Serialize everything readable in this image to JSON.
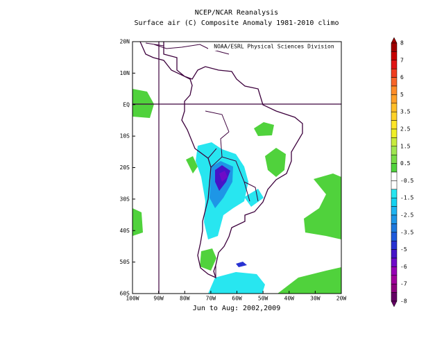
{
  "header": {
    "title": "NCEP/NCAR Reanalysis",
    "subtitle": "Surface air (C) Composite Anomaly 1981-2010 climo"
  },
  "map": {
    "attribution": "NOAA/ESRL Physical Sciences Division",
    "lat_labels": [
      "20N",
      "10N",
      "EQ",
      "10S",
      "20S",
      "30S",
      "40S",
      "50S",
      "60S"
    ],
    "lon_labels": [
      "100W",
      "90W",
      "80W",
      "70W",
      "60W",
      "50W",
      "40W",
      "30W",
      "20W"
    ],
    "caption": "Jun to Aug: 2002,2009"
  },
  "colorbar": {
    "labels": [
      "8",
      "7",
      "6",
      "5",
      "3.5",
      "2.5",
      "1.5",
      "0.5",
      "-0.5",
      "-1.5",
      "-2.5",
      "-3.5",
      "-5",
      "-6",
      "-7",
      "-8"
    ],
    "colors": [
      "#a00000",
      "#c80000",
      "#e01414",
      "#f03c1e",
      "#f86428",
      "#ff8c28",
      "#ffa028",
      "#ffbe28",
      "#ffd228",
      "#ffe628",
      "#f0f028",
      "#c8eb3c",
      "#a0e650",
      "#78dc46",
      "#50d23c",
      "#ffffff",
      "#ffffff",
      "#28e6f0",
      "#14d2f0",
      "#1eb4f0",
      "#1e96e6",
      "#1e78dc",
      "#1e5adc",
      "#2832d2",
      "#4614c8",
      "#6e0ac8",
      "#9600b4",
      "#a0009b",
      "#8c007d",
      "#640064"
    ]
  }
}
